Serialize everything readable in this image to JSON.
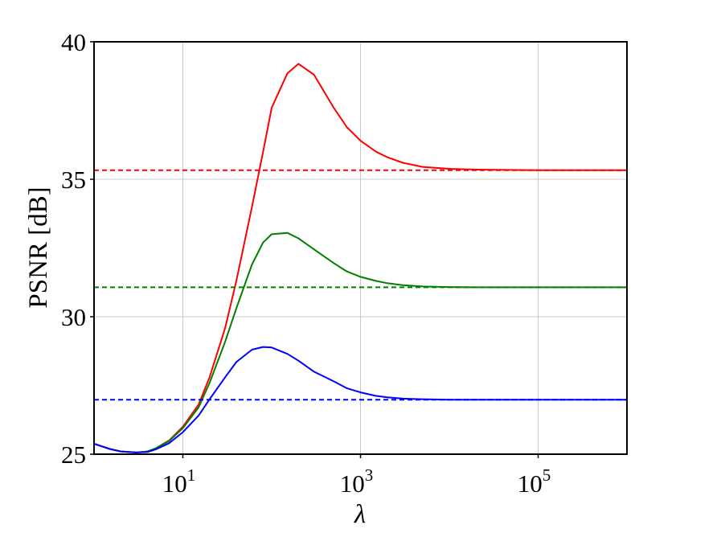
{
  "chart_data": {
    "type": "line",
    "xscale": "log",
    "xlim": [
      1,
      1000000
    ],
    "ylim": [
      25,
      40
    ],
    "xlabel": "λ",
    "ylabel": "PSNR [dB]",
    "grid": true,
    "legend": "none",
    "xticks": [
      {
        "value": 10,
        "base": "10",
        "exp": "1"
      },
      {
        "value": 1000,
        "base": "10",
        "exp": "3"
      },
      {
        "value": 100000,
        "base": "10",
        "exp": "5"
      }
    ],
    "yticks": [
      {
        "value": 25,
        "label": "25"
      },
      {
        "value": 30,
        "label": "30"
      },
      {
        "value": 35,
        "label": "35"
      },
      {
        "value": 40,
        "label": "40"
      }
    ],
    "x": [
      1,
      1.5,
      2,
      3,
      4,
      5,
      7,
      10,
      15,
      20,
      30,
      40,
      60,
      80,
      100,
      150,
      200,
      300,
      500,
      700,
      1000,
      1500,
      2000,
      3000,
      5000,
      10000,
      20000,
      100000,
      1000000
    ],
    "series": [
      {
        "color": "#ff0000",
        "style": "solid",
        "values": [
          25.38,
          25.19,
          25.1,
          25.06,
          25.1,
          25.22,
          25.5,
          26.0,
          26.8,
          27.8,
          29.6,
          31.3,
          34.0,
          36.0,
          37.6,
          38.85,
          39.2,
          38.8,
          37.6,
          36.9,
          36.4,
          36.0,
          35.8,
          35.6,
          35.45,
          35.38,
          35.35,
          35.33,
          35.33
        ]
      },
      {
        "color": "#008000",
        "style": "solid",
        "values": [
          25.38,
          25.19,
          25.1,
          25.06,
          25.1,
          25.22,
          25.48,
          25.95,
          26.7,
          27.6,
          29.1,
          30.3,
          31.9,
          32.7,
          33.0,
          33.05,
          32.85,
          32.45,
          31.95,
          31.65,
          31.45,
          31.3,
          31.22,
          31.15,
          31.1,
          31.08,
          31.07,
          31.07,
          31.07
        ]
      },
      {
        "color": "#0000ff",
        "style": "solid",
        "values": [
          25.38,
          25.19,
          25.1,
          25.06,
          25.08,
          25.18,
          25.4,
          25.8,
          26.4,
          27.0,
          27.8,
          28.35,
          28.8,
          28.9,
          28.88,
          28.65,
          28.4,
          28.0,
          27.65,
          27.4,
          27.25,
          27.12,
          27.07,
          27.02,
          27.0,
          26.98,
          26.98,
          26.98,
          26.98
        ]
      },
      {
        "color": "#ff0000",
        "style": "dashed",
        "x": [
          1,
          1000000
        ],
        "values": [
          35.33,
          35.33
        ]
      },
      {
        "color": "#008000",
        "style": "dashed",
        "x": [
          1,
          1000000
        ],
        "values": [
          31.07,
          31.07
        ]
      },
      {
        "color": "#0000ff",
        "style": "dashed",
        "x": [
          1,
          1000000
        ],
        "values": [
          26.98,
          26.98
        ]
      }
    ]
  }
}
